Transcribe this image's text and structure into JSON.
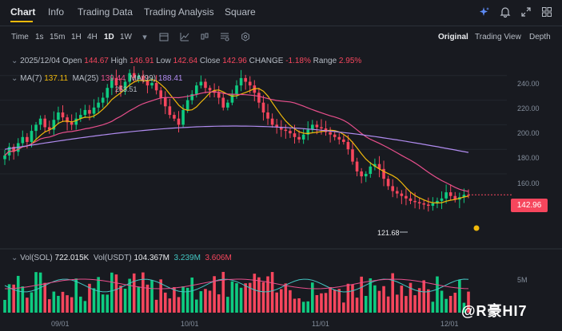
{
  "tabs": [
    "Chart",
    "Info",
    "Trading Data",
    "Trading Analysis",
    "Square"
  ],
  "toolbar": {
    "time_label": "Time",
    "intervals": [
      "1s",
      "15m",
      "1H",
      "4H",
      "1D",
      "1W"
    ],
    "active_interval": "1D",
    "views": [
      "Original",
      "Trading View",
      "Depth"
    ],
    "active_view": "Original"
  },
  "ohlc": {
    "date": "2025/12/04",
    "open_label": "Open",
    "open": "144.67",
    "high_label": "High",
    "high": "146.91",
    "low_label": "Low",
    "low": "142.64",
    "close_label": "Close",
    "close": "142.96",
    "change_label": "CHANGE",
    "change": "-1.18%",
    "range_label": "Range",
    "range": "2.95%"
  },
  "ma": {
    "ma7_label": "MA(7)",
    "ma7": "137.11",
    "ma25_label": "MA(25)",
    "ma25": "139.44",
    "ma99_label": "MA(99)",
    "ma99": "188.41"
  },
  "volume": {
    "sol_label": "Vol(SOL)",
    "sol": "722.015K",
    "usdt_label": "Vol(USDT)",
    "usdt": "104.367M",
    "extra1": "3.239M",
    "extra2": "3.606M"
  },
  "y_axis": [
    "240.00",
    "220.00",
    "200.00",
    "180.00",
    "160.00"
  ],
  "vol_axis": "5M",
  "x_axis": [
    "09/01",
    "10/01",
    "11/01",
    "12/01"
  ],
  "annotations": {
    "high": "253.51",
    "low": "121.68"
  },
  "current_price": "142.96",
  "watermark": "@R豪HI7",
  "colors": {
    "up": "#0ecb81",
    "down": "#f6465d",
    "ma7": "#f0b90b",
    "ma25": "#e84f8c",
    "ma99": "#b18cf0",
    "accent": "#f0b90b"
  },
  "chart_data": {
    "type": "candlestick",
    "ylim": [
      110,
      260
    ],
    "x_range": [
      "2025-08-10",
      "2025-12-04"
    ],
    "closes": [
      175,
      182,
      178,
      185,
      190,
      186,
      195,
      200,
      205,
      198,
      196,
      204,
      210,
      206,
      202,
      200,
      205,
      208,
      212,
      209,
      214,
      218,
      222,
      230,
      238,
      232,
      228,
      235,
      242,
      238,
      240,
      236,
      232,
      234,
      228,
      222,
      215,
      208,
      205,
      200,
      212,
      220,
      225,
      232,
      235,
      230,
      228,
      226,
      222,
      214,
      218,
      225,
      232,
      238,
      235,
      232,
      226,
      218,
      210,
      205,
      200,
      198,
      196,
      195,
      193,
      190,
      188,
      192,
      196,
      200,
      198,
      197,
      194,
      192,
      190,
      188,
      186,
      180,
      170,
      162,
      158,
      160,
      166,
      168,
      164,
      156,
      150,
      146,
      144,
      142,
      140,
      138,
      137,
      136,
      135,
      134,
      136,
      138,
      140,
      145,
      142,
      139,
      141,
      143,
      142.96
    ]
  }
}
